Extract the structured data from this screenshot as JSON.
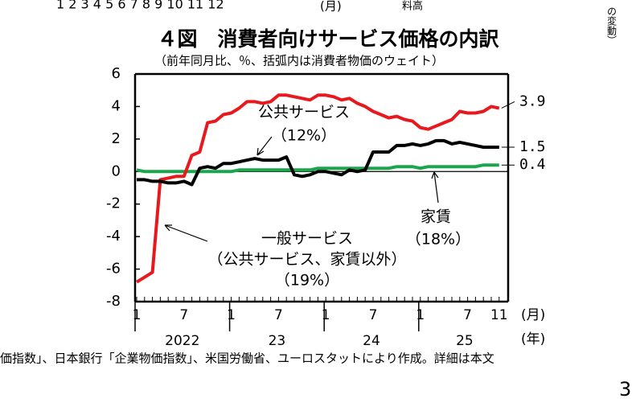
{
  "page": {
    "top_month_scale": "1 2 3 4 5 6 7 8 9 10 11 12",
    "top_month_unit": "(月)",
    "top_fragment": "料高",
    "side_fragment": "の変動）",
    "footnote": "価指数」、日本銀行「企業物価指数」、米国労働省、ユーロスタットにより作成。詳細は本文",
    "page_number": "3"
  },
  "chart_data": {
    "type": "line",
    "title": "４図　消費者向けサービス価格の内訳",
    "subtitle": "（前年同月比、％、括弧内は消費者物価のウェイト）",
    "categories": [
      "1",
      null,
      null,
      null,
      null,
      null,
      "7",
      null,
      null,
      null,
      null,
      null,
      "1",
      null,
      null,
      null,
      null,
      null,
      "7",
      null,
      null,
      null,
      null,
      null,
      "1",
      null,
      null,
      null,
      null,
      null,
      "7",
      null,
      null,
      null,
      null,
      null,
      "1",
      null,
      null,
      null,
      null,
      null,
      "7",
      null,
      null,
      null,
      "11"
    ],
    "x_unit": "(月)",
    "year_labels": [
      "2022",
      "23",
      "24",
      "25"
    ],
    "year_unit": "(年)",
    "ylim": [
      -8,
      6
    ],
    "yticks": [
      -8,
      -6,
      -4,
      -2,
      0,
      2,
      4,
      6
    ],
    "series": [
      {
        "name": "一般サービス",
        "weight": "（19%）",
        "note": "（公共サービス、家賃以外）",
        "color": "#e8191e",
        "values": [
          -6.8,
          -6.5,
          -6.2,
          -0.5,
          -0.4,
          -0.3,
          -0.3,
          1.0,
          1.2,
          3.0,
          3.1,
          3.5,
          3.6,
          3.9,
          4.3,
          4.3,
          4.2,
          4.3,
          4.7,
          4.7,
          4.6,
          4.5,
          4.4,
          4.7,
          4.7,
          4.6,
          4.4,
          4.5,
          4.2,
          4.0,
          3.7,
          3.5,
          3.3,
          3.4,
          3.2,
          3.1,
          2.7,
          2.6,
          2.8,
          3.0,
          3.2,
          3.7,
          3.6,
          3.6,
          3.7,
          4.0,
          3.9
        ]
      },
      {
        "name": "公共サービス",
        "weight": "（12%）",
        "color": "#000000",
        "values": [
          -0.5,
          -0.5,
          -0.6,
          -0.6,
          -0.7,
          -0.7,
          -0.6,
          -0.8,
          0.2,
          0.3,
          0.2,
          0.5,
          0.5,
          0.6,
          0.7,
          0.8,
          0.7,
          0.7,
          0.7,
          0.9,
          -0.2,
          -0.3,
          -0.2,
          0.0,
          0.0,
          -0.1,
          -0.2,
          0.1,
          0.0,
          0.1,
          1.2,
          1.2,
          1.2,
          1.6,
          1.6,
          1.7,
          1.6,
          1.7,
          1.9,
          1.9,
          1.7,
          1.8,
          1.7,
          1.6,
          1.5,
          1.5,
          1.5
        ]
      },
      {
        "name": "家賃",
        "weight": "（18%）",
        "color": "#1aa64a",
        "values": [
          0.1,
          0.0,
          0.0,
          0.0,
          0.0,
          0.0,
          0.0,
          0.0,
          0.0,
          0.0,
          0.0,
          0.0,
          0.0,
          0.1,
          0.1,
          0.1,
          0.1,
          0.1,
          0.1,
          0.1,
          0.1,
          0.1,
          0.1,
          0.2,
          0.2,
          0.2,
          0.2,
          0.2,
          0.2,
          0.2,
          0.2,
          0.2,
          0.2,
          0.3,
          0.3,
          0.3,
          0.2,
          0.3,
          0.3,
          0.3,
          0.3,
          0.3,
          0.3,
          0.3,
          0.4,
          0.4,
          0.4
        ]
      }
    ]
  }
}
